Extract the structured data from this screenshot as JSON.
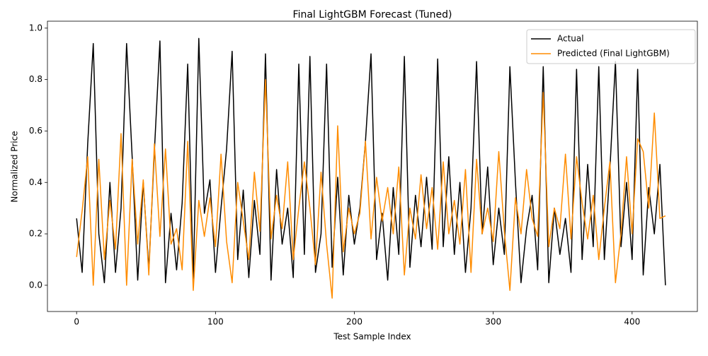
{
  "chart_data": {
    "type": "line",
    "title": "Final LightGBM Forecast (Tuned)",
    "x_label": "Test Sample Index",
    "y_label": "Normalized Price",
    "x": [
      0,
      4,
      8,
      12,
      16,
      20,
      24,
      28,
      32,
      36,
      40,
      44,
      48,
      52,
      56,
      60,
      64,
      68,
      72,
      76,
      80,
      84,
      88,
      92,
      96,
      100,
      104,
      108,
      112,
      116,
      120,
      124,
      128,
      132,
      136,
      140,
      144,
      148,
      152,
      156,
      160,
      164,
      168,
      172,
      176,
      180,
      184,
      188,
      192,
      196,
      200,
      204,
      208,
      212,
      216,
      220,
      224,
      228,
      232,
      236,
      240,
      244,
      248,
      252,
      256,
      260,
      264,
      268,
      272,
      276,
      280,
      284,
      288,
      292,
      296,
      300,
      304,
      308,
      312,
      316,
      320,
      324,
      328,
      332,
      336,
      340,
      344,
      348,
      352,
      356,
      360,
      364,
      368,
      372,
      376,
      380,
      384,
      388,
      392,
      396,
      400,
      404,
      408,
      412,
      416,
      420,
      424
    ],
    "series": [
      {
        "name": "Actual",
        "color": "#000000",
        "values": [
          0.26,
          0.05,
          0.55,
          0.94,
          0.2,
          0.01,
          0.4,
          0.05,
          0.3,
          0.94,
          0.5,
          0.02,
          0.4,
          0.06,
          0.52,
          0.95,
          0.01,
          0.28,
          0.06,
          0.32,
          0.86,
          0.02,
          0.96,
          0.28,
          0.41,
          0.05,
          0.3,
          0.53,
          0.91,
          0.1,
          0.37,
          0.03,
          0.33,
          0.12,
          0.9,
          0.02,
          0.45,
          0.16,
          0.3,
          0.03,
          0.86,
          0.12,
          0.89,
          0.05,
          0.2,
          0.86,
          0.07,
          0.42,
          0.04,
          0.35,
          0.16,
          0.3,
          0.56,
          0.9,
          0.1,
          0.28,
          0.02,
          0.38,
          0.12,
          0.89,
          0.07,
          0.35,
          0.15,
          0.42,
          0.14,
          0.88,
          0.15,
          0.5,
          0.12,
          0.4,
          0.05,
          0.3,
          0.87,
          0.2,
          0.46,
          0.08,
          0.3,
          0.12,
          0.85,
          0.4,
          0.01,
          0.22,
          0.35,
          0.06,
          0.85,
          0.01,
          0.3,
          0.12,
          0.26,
          0.05,
          0.84,
          0.1,
          0.47,
          0.15,
          0.85,
          0.1,
          0.45,
          0.87,
          0.15,
          0.4,
          0.1,
          0.84,
          0.04,
          0.38,
          0.2,
          0.47,
          0.0
        ]
      },
      {
        "name": "Predicted (Final LightGBM)",
        "color": "#ff8c00",
        "values": [
          0.11,
          0.29,
          0.5,
          0.0,
          0.49,
          0.1,
          0.33,
          0.14,
          0.59,
          0.0,
          0.49,
          0.16,
          0.41,
          0.04,
          0.55,
          0.19,
          0.53,
          0.16,
          0.22,
          0.06,
          0.56,
          -0.02,
          0.33,
          0.19,
          0.34,
          0.15,
          0.51,
          0.17,
          0.01,
          0.4,
          0.25,
          0.1,
          0.44,
          0.21,
          0.8,
          0.18,
          0.35,
          0.22,
          0.48,
          0.1,
          0.3,
          0.48,
          0.3,
          0.08,
          0.44,
          0.16,
          -0.05,
          0.62,
          0.13,
          0.3,
          0.2,
          0.28,
          0.56,
          0.18,
          0.42,
          0.25,
          0.38,
          0.2,
          0.46,
          0.04,
          0.3,
          0.18,
          0.43,
          0.22,
          0.38,
          0.14,
          0.48,
          0.2,
          0.33,
          0.16,
          0.45,
          0.05,
          0.49,
          0.2,
          0.3,
          0.17,
          0.52,
          0.21,
          -0.02,
          0.34,
          0.2,
          0.45,
          0.26,
          0.19,
          0.75,
          0.15,
          0.3,
          0.22,
          0.51,
          0.18,
          0.5,
          0.32,
          0.18,
          0.35,
          0.1,
          0.3,
          0.48,
          0.01,
          0.2,
          0.5,
          0.2,
          0.57,
          0.52,
          0.3,
          0.67,
          0.26,
          0.27
        ]
      }
    ],
    "xlim": [
      -21,
      447
    ],
    "ylim": [
      -0.102,
      1.027
    ],
    "xticks": [
      0,
      100,
      200,
      300,
      400
    ],
    "yticks": [
      {
        "value": 0,
        "label": "0.0"
      },
      0.2,
      0.4,
      0.6,
      0.8,
      {
        "value": 1,
        "label": "1.0"
      }
    ],
    "legend": "upper right"
  }
}
